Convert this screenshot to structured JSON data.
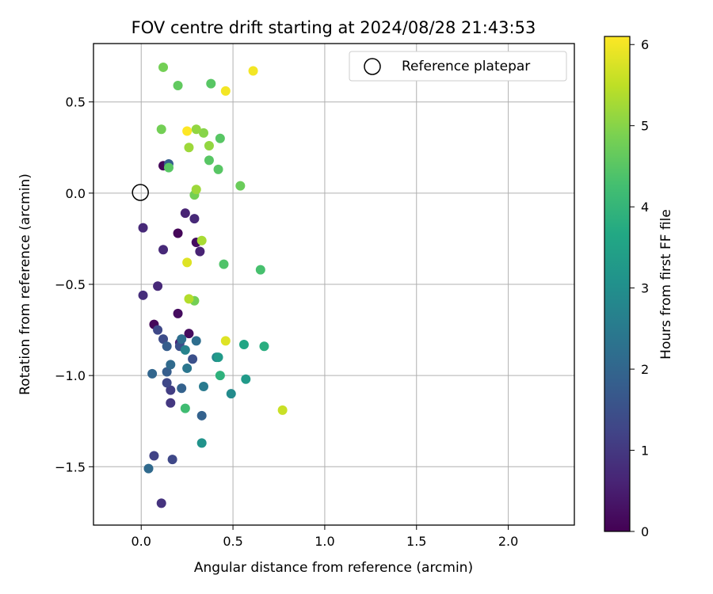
{
  "chart_data": {
    "type": "scatter",
    "title": "FOV centre drift starting at 2024/08/28 21:43:53",
    "xlabel": "Angular distance from reference (arcmin)",
    "ylabel": "Rotation from reference (arcmin)",
    "xlim": [
      -0.26,
      2.36
    ],
    "ylim": [
      -1.82,
      0.82
    ],
    "xticks": [
      0.0,
      0.5,
      1.0,
      1.5,
      2.0
    ],
    "xtick_labels": [
      "0.0",
      "0.5",
      "1.0",
      "1.5",
      "2.0"
    ],
    "yticks": [
      0.5,
      0.0,
      -0.5,
      -1.0,
      -1.5
    ],
    "ytick_labels": [
      "0.5",
      "0.0",
      "−0.5",
      "−1.0",
      "−1.5"
    ],
    "grid": true,
    "legend": {
      "label": "Reference platepar",
      "placement": "top-right"
    },
    "reference_point": {
      "x": 0.0,
      "y": 0.0
    },
    "colorbar": {
      "label": "Hours from first FF file",
      "colormap": "viridis",
      "range": [
        0,
        6.1
      ],
      "ticks": [
        0,
        1,
        2,
        3,
        4,
        5,
        6
      ],
      "tick_labels": [
        "0",
        "1",
        "2",
        "3",
        "4",
        "5",
        "6"
      ]
    },
    "points": [
      {
        "x": 0.12,
        "y": 0.15,
        "h": 0.1
      },
      {
        "x": 0.2,
        "y": -0.22,
        "h": 0.1
      },
      {
        "x": 0.3,
        "y": -0.27,
        "h": 0.2
      },
      {
        "x": 0.07,
        "y": -0.72,
        "h": 0.1
      },
      {
        "x": 0.2,
        "y": -0.66,
        "h": 0.2
      },
      {
        "x": 0.26,
        "y": -0.77,
        "h": 0.2
      },
      {
        "x": 0.24,
        "y": -0.11,
        "h": 0.6
      },
      {
        "x": 0.29,
        "y": -0.14,
        "h": 0.7
      },
      {
        "x": 0.01,
        "y": -0.19,
        "h": 0.7
      },
      {
        "x": 0.12,
        "y": -0.31,
        "h": 0.7
      },
      {
        "x": 0.32,
        "y": -0.32,
        "h": 0.6
      },
      {
        "x": 0.09,
        "y": -0.51,
        "h": 0.7
      },
      {
        "x": 0.01,
        "y": -0.56,
        "h": 0.8
      },
      {
        "x": 0.21,
        "y": -0.82,
        "h": 0.6
      },
      {
        "x": 0.11,
        "y": -1.7,
        "h": 0.9
      },
      {
        "x": 0.16,
        "y": -1.15,
        "h": 1.0
      },
      {
        "x": 0.16,
        "y": -1.08,
        "h": 1.1
      },
      {
        "x": 0.07,
        "y": -1.44,
        "h": 1.2
      },
      {
        "x": 0.17,
        "y": -1.46,
        "h": 1.3
      },
      {
        "x": 0.14,
        "y": -1.04,
        "h": 1.3
      },
      {
        "x": 0.09,
        "y": -0.75,
        "h": 1.3
      },
      {
        "x": 0.12,
        "y": -0.8,
        "h": 1.4
      },
      {
        "x": 0.21,
        "y": -0.84,
        "h": 1.5
      },
      {
        "x": 0.28,
        "y": -0.91,
        "h": 1.5
      },
      {
        "x": 0.15,
        "y": 0.16,
        "h": 1.8
      },
      {
        "x": 0.14,
        "y": -0.84,
        "h": 1.8
      },
      {
        "x": 0.14,
        "y": -0.98,
        "h": 1.8
      },
      {
        "x": 0.22,
        "y": -1.07,
        "h": 1.9
      },
      {
        "x": 0.33,
        "y": -1.22,
        "h": 1.9
      },
      {
        "x": 0.04,
        "y": -1.51,
        "h": 2.1
      },
      {
        "x": 0.06,
        "y": -0.99,
        "h": 2.0
      },
      {
        "x": 0.16,
        "y": -0.94,
        "h": 2.1
      },
      {
        "x": 0.22,
        "y": -0.8,
        "h": 2.2
      },
      {
        "x": 0.3,
        "y": -0.81,
        "h": 2.2
      },
      {
        "x": 0.25,
        "y": -0.96,
        "h": 2.4
      },
      {
        "x": 0.34,
        "y": -1.06,
        "h": 2.5
      },
      {
        "x": 0.24,
        "y": -0.86,
        "h": 2.7
      },
      {
        "x": 0.41,
        "y": -0.9,
        "h": 2.8
      },
      {
        "x": 0.49,
        "y": -1.1,
        "h": 2.9
      },
      {
        "x": 0.33,
        "y": -1.37,
        "h": 3.1
      },
      {
        "x": 0.42,
        "y": -0.9,
        "h": 3.3
      },
      {
        "x": 0.57,
        "y": -1.02,
        "h": 3.3
      },
      {
        "x": 0.56,
        "y": -0.83,
        "h": 3.6
      },
      {
        "x": 0.43,
        "y": -1.0,
        "h": 3.9
      },
      {
        "x": 0.67,
        "y": -0.84,
        "h": 3.8
      },
      {
        "x": 0.24,
        "y": -1.18,
        "h": 4.2
      },
      {
        "x": 0.65,
        "y": -0.42,
        "h": 4.3
      },
      {
        "x": 0.45,
        "y": -0.39,
        "h": 4.4
      },
      {
        "x": 0.15,
        "y": 0.14,
        "h": 4.5
      },
      {
        "x": 0.37,
        "y": 0.18,
        "h": 4.5
      },
      {
        "x": 0.42,
        "y": 0.13,
        "h": 4.5
      },
      {
        "x": 0.43,
        "y": 0.3,
        "h": 4.5
      },
      {
        "x": 0.38,
        "y": 0.6,
        "h": 4.5
      },
      {
        "x": 0.2,
        "y": 0.59,
        "h": 4.6
      },
      {
        "x": 0.54,
        "y": 0.04,
        "h": 4.7
      },
      {
        "x": 0.12,
        "y": 0.69,
        "h": 4.8
      },
      {
        "x": 0.11,
        "y": 0.35,
        "h": 4.8
      },
      {
        "x": 0.29,
        "y": -0.59,
        "h": 4.8
      },
      {
        "x": 0.29,
        "y": -0.01,
        "h": 4.8
      },
      {
        "x": 0.34,
        "y": 0.33,
        "h": 5.0
      },
      {
        "x": 0.3,
        "y": 0.35,
        "h": 5.1
      },
      {
        "x": 0.3,
        "y": 0.02,
        "h": 5.2
      },
      {
        "x": 0.26,
        "y": 0.25,
        "h": 5.2
      },
      {
        "x": 0.37,
        "y": 0.26,
        "h": 5.1
      },
      {
        "x": 0.33,
        "y": -0.26,
        "h": 5.3
      },
      {
        "x": 0.26,
        "y": -0.58,
        "h": 5.4
      },
      {
        "x": 0.25,
        "y": -0.38,
        "h": 5.8
      },
      {
        "x": 0.46,
        "y": -0.81,
        "h": 5.8
      },
      {
        "x": 0.77,
        "y": -1.19,
        "h": 5.6
      },
      {
        "x": 0.25,
        "y": 0.34,
        "h": 6.1
      },
      {
        "x": 0.46,
        "y": 0.56,
        "h": 6.0
      },
      {
        "x": 0.61,
        "y": 0.67,
        "h": 6.0
      }
    ]
  }
}
